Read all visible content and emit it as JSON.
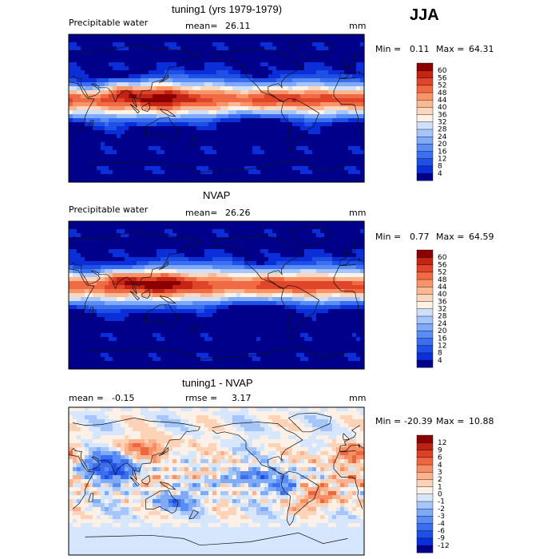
{
  "season": "JJA",
  "chart_data": [
    {
      "type": "heatmap",
      "title": "tuning1 (yrs 1979-1979)",
      "variable": "Precipitable water",
      "stat_left_label": "",
      "stat_left_value": "",
      "mean_label": "mean=",
      "mean_value": "26.11",
      "units": "mm",
      "min_label": "Min =",
      "min_value": "0.11",
      "max_label": "Max =",
      "max_value": "64.31",
      "colorbar_levels": [
        "4",
        "8",
        "12",
        "16",
        "20",
        "24",
        "28",
        "32",
        "36",
        "40",
        "44",
        "48",
        "52",
        "56",
        "60"
      ],
      "colorbar_colors": [
        "#00008b",
        "#0a2ed8",
        "#1e50e6",
        "#3c6ef0",
        "#5a8cf5",
        "#7faaf8",
        "#a6c6fb",
        "#cfe0fd",
        "#fdf2e6",
        "#fdd7bd",
        "#fcb793",
        "#f99469",
        "#f06a43",
        "#e0452a",
        "#c42414",
        "#8b0000"
      ],
      "field": "tuning1"
    },
    {
      "type": "heatmap",
      "title": "NVAP",
      "variable": "Precipitable water",
      "mean_label": "mean=",
      "mean_value": "26.26",
      "units": "mm",
      "min_label": "Min =",
      "min_value": "0.77",
      "max_label": "Max =",
      "max_value": "64.59",
      "colorbar_levels": [
        "4",
        "8",
        "12",
        "16",
        "20",
        "24",
        "28",
        "32",
        "36",
        "40",
        "44",
        "48",
        "52",
        "56",
        "60"
      ],
      "colorbar_colors": [
        "#00008b",
        "#0a2ed8",
        "#1e50e6",
        "#3c6ef0",
        "#5a8cf5",
        "#7faaf8",
        "#a6c6fb",
        "#cfe0fd",
        "#fdf2e6",
        "#fdd7bd",
        "#fcb793",
        "#f99469",
        "#f06a43",
        "#e0452a",
        "#c42414",
        "#8b0000"
      ],
      "field": "nvap"
    },
    {
      "type": "heatmap",
      "title": "tuning1 - NVAP",
      "mean_label": "mean =",
      "mean_value": "-0.15",
      "rmse_label": "rmse =",
      "rmse_value": "3.17",
      "units": "mm",
      "min_label": "Min =",
      "min_value": "-20.39",
      "max_label": "Max =",
      "max_value": "10.88",
      "colorbar_levels": [
        "-12",
        "-9",
        "-6",
        "-4",
        "-3",
        "-2",
        "-1",
        "0",
        "1",
        "2",
        "3",
        "4",
        "6",
        "9",
        "12"
      ],
      "colorbar_colors": [
        "#00008b",
        "#0a2ed8",
        "#1e50e6",
        "#3c6ef0",
        "#5a8cf5",
        "#7faaf8",
        "#a6c6fb",
        "#d6e6fd",
        "#fdf0e6",
        "#fdd3b8",
        "#fcb28e",
        "#f78e64",
        "#ee6640",
        "#dc4128",
        "#bf2212",
        "#8b0000"
      ],
      "field": "diff"
    }
  ]
}
